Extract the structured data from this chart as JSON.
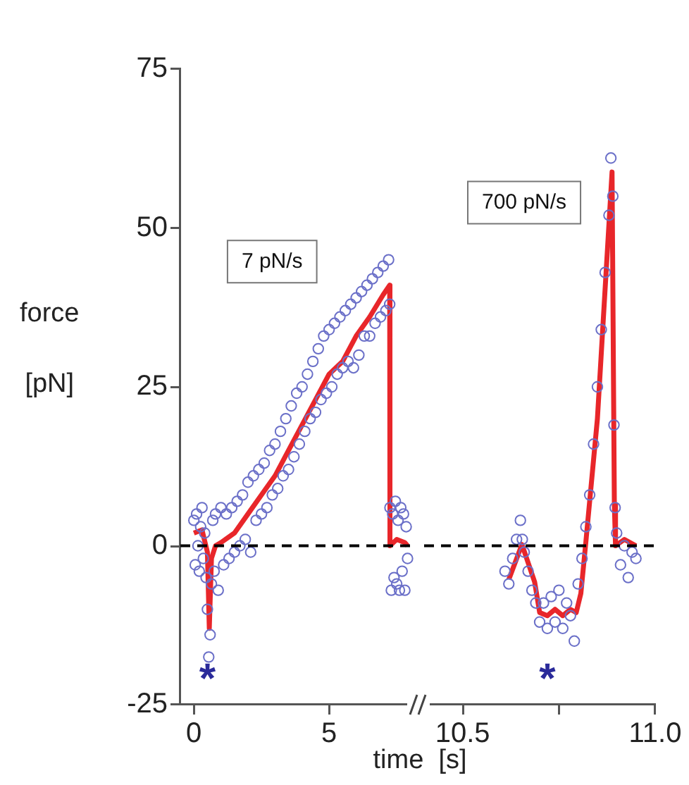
{
  "chart_data": [
    {
      "type": "scatter",
      "xlabel": "time  [s]",
      "ylabel": "force\n[pN]",
      "xlim": [
        -0.5,
        8.2
      ],
      "xticks": [
        0,
        5
      ],
      "ylim": [
        -25,
        75
      ],
      "yticks": [
        -25,
        0,
        25,
        50,
        75
      ],
      "grid": false,
      "legend": false,
      "ref_lines": [
        {
          "axis": "y",
          "value": 0,
          "color": "#000000",
          "line_style": "dashed"
        }
      ],
      "annotations": [
        "7 pN/s",
        "*"
      ],
      "series": [
        {
          "type": "scatter",
          "marker": "circle",
          "color": "#6a6fc8",
          "x": [
            0.0,
            0.05,
            0.1,
            0.15,
            0.2,
            0.25,
            0.3,
            0.35,
            0.4,
            0.45,
            0.5,
            0.55,
            0.6,
            0.65,
            0.7,
            0.75,
            0.8,
            0.9,
            1.0,
            1.1,
            1.2,
            1.3,
            1.4,
            1.5,
            1.6,
            1.7,
            1.8,
            1.9,
            2.0,
            2.1,
            2.2,
            2.3,
            2.4,
            2.5,
            2.6,
            2.7,
            2.8,
            2.9,
            3.0,
            3.1,
            3.2,
            3.3,
            3.4,
            3.5,
            3.6,
            3.7,
            3.8,
            3.9,
            4.0,
            4.1,
            4.2,
            4.3,
            4.4,
            4.5,
            4.6,
            4.7,
            4.8,
            4.9,
            5.0,
            5.1,
            5.2,
            5.3,
            5.4,
            5.5,
            5.6,
            5.7,
            5.8,
            5.9,
            6.0,
            6.1,
            6.2,
            6.3,
            6.4,
            6.5,
            6.6,
            6.7,
            6.8,
            6.9,
            7.0,
            7.1,
            7.2,
            7.24,
            7.25,
            7.3,
            7.35,
            7.4,
            7.45,
            7.5,
            7.55,
            7.6,
            7.65,
            7.7,
            7.75,
            7.8,
            7.85,
            7.9
          ],
          "values": [
            4,
            -3,
            5,
            0,
            -4,
            3,
            6,
            -2,
            2,
            -5,
            -10,
            -17.5,
            -14,
            -6,
            4,
            -4,
            5,
            -7,
            6,
            -3,
            5,
            -2,
            6,
            -1,
            7,
            0,
            8,
            1,
            10,
            -1,
            11,
            4,
            12,
            5,
            13,
            6,
            15,
            8,
            16,
            9,
            18,
            11,
            20,
            12,
            22,
            14,
            24,
            16,
            25,
            18,
            27,
            20,
            29,
            21,
            31,
            23,
            33,
            24,
            34,
            25,
            35,
            27,
            36,
            28,
            37,
            29,
            38,
            28,
            39,
            30,
            40,
            33,
            41,
            33,
            42,
            35,
            43,
            36,
            44,
            37,
            45,
            38,
            6,
            -7,
            5,
            -5,
            7,
            -6,
            4,
            -7,
            6,
            -4,
            5,
            -7,
            3,
            -2
          ]
        },
        {
          "type": "line",
          "marker": "none",
          "line_style": "solid",
          "color": "#e8262a",
          "x": [
            0,
            0.3,
            0.5,
            0.57,
            0.65,
            0.8,
            1,
            1.5,
            2,
            2.5,
            3,
            3.5,
            4,
            4.5,
            5,
            5.5,
            6,
            6.5,
            7,
            7.24,
            7.25,
            7.5,
            7.8,
            7.9
          ],
          "values": [
            2,
            2.5,
            -1,
            -13,
            -2,
            0,
            0.5,
            2,
            5,
            8,
            11,
            15,
            19,
            23,
            27,
            29,
            33,
            36,
            39.5,
            41,
            0,
            1,
            0.5,
            0
          ]
        }
      ]
    },
    {
      "type": "scatter",
      "xlim": [
        10.4,
        11.0
      ],
      "xticks": [
        {
          "value": 10.5,
          "label": "10.5"
        },
        {
          "value": 10.75,
          "label": null
        },
        {
          "value": 11.0,
          "label": "11.0"
        }
      ],
      "ylim": [
        -25,
        75
      ],
      "tick_labels": "x",
      "grid": false,
      "legend": false,
      "ref_lines": [
        {
          "axis": "y",
          "value": 0,
          "color": "#000000",
          "line_style": "dashed"
        }
      ],
      "annotations": [
        "700 pN/s",
        "*"
      ],
      "series": [
        {
          "type": "scatter",
          "marker": "circle",
          "color": "#6a6fc8",
          "x": [
            10.61,
            10.62,
            10.63,
            10.64,
            10.65,
            10.655,
            10.66,
            10.67,
            10.68,
            10.69,
            10.7,
            10.71,
            10.72,
            10.73,
            10.74,
            10.75,
            10.76,
            10.77,
            10.78,
            10.79,
            10.8,
            10.81,
            10.82,
            10.83,
            10.84,
            10.85,
            10.86,
            10.87,
            10.88,
            10.885,
            10.89,
            10.893,
            10.896,
            10.9,
            10.91,
            10.92,
            10.93,
            10.94,
            10.95
          ],
          "values": [
            -4,
            -6,
            -2,
            1,
            4,
            1,
            -1,
            -4,
            -7,
            -9,
            -12,
            -9,
            -13,
            -8,
            -12,
            -7,
            -13,
            -9,
            -11,
            -15,
            -6,
            -2,
            3,
            8,
            16,
            25,
            34,
            43,
            52,
            61,
            55,
            19,
            6,
            2,
            -3,
            0,
            -5,
            -1,
            -2
          ]
        },
        {
          "type": "line",
          "marker": "none",
          "line_style": "solid",
          "color": "#e8262a",
          "x": [
            10.62,
            10.654,
            10.687,
            10.7,
            10.72,
            10.74,
            10.76,
            10.78,
            10.795,
            10.807,
            10.82,
            10.85,
            10.888,
            10.894,
            10.897,
            10.92,
            10.95
          ],
          "values": [
            -5.3,
            0.2,
            -5.7,
            -10.5,
            -11,
            -10,
            -11,
            -10,
            -10.5,
            -7.5,
            0.6,
            20,
            58.8,
            6.5,
            0,
            1,
            0
          ]
        }
      ]
    }
  ]
}
